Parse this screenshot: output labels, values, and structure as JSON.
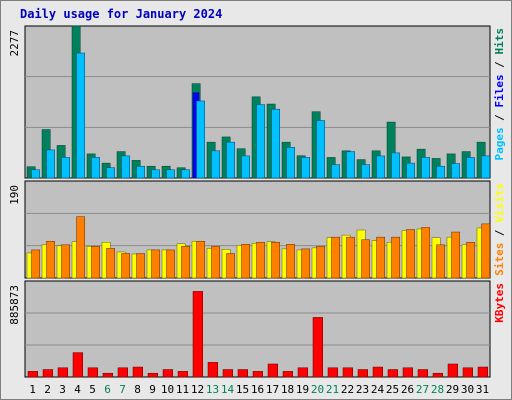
{
  "page_title": "Daily usage for January 2024",
  "colors": {
    "background": "#e8e8e8",
    "plot_background": "#c0c0c0",
    "hits": "#00805c",
    "files": "#00c0ff",
    "pages": "#0000ff",
    "visits": "#ff8000",
    "sites": "#ffff00",
    "kbytes": "#ff0000",
    "weekend_day_label": "#00805c"
  },
  "chart_data": [
    {
      "type": "bar",
      "title": "Daily usage for January 2024",
      "ylabel_parts": [
        "Pages",
        "Files",
        "Hits"
      ],
      "ylabel_separator": " / ",
      "ytick_label": "2277",
      "ylim": [
        0,
        2277
      ],
      "categories": [
        "1",
        "2",
        "3",
        "4",
        "5",
        "6",
        "7",
        "8",
        "9",
        "10",
        "11",
        "12",
        "13",
        "14",
        "15",
        "16",
        "17",
        "18",
        "19",
        "20",
        "21",
        "22",
        "23",
        "24",
        "25",
        "26",
        "27",
        "28",
        "29",
        "30",
        "31"
      ],
      "weekend_days": [
        "6",
        "7",
        "13",
        "14",
        "20",
        "21",
        "27",
        "28"
      ],
      "grid": true,
      "series": [
        {
          "name": "Hits",
          "values": [
            169,
            726,
            488,
            2277,
            361,
            223,
            396,
            264,
            177,
            177,
            154,
            1414,
            537,
            615,
            439,
            1216,
            1108,
            537,
            334,
            993,
            308,
            407,
            276,
            407,
            838,
            316,
            432,
            293,
            361,
            396,
            537
          ]
        },
        {
          "name": "Files",
          "values": [
            123,
            421,
            308,
            1872,
            308,
            154,
            331,
            177,
            123,
            123,
            123,
            1154,
            407,
            537,
            331,
            1100,
            1031,
            461,
            308,
            861,
            200,
            396,
            200,
            331,
            376,
            223,
            308,
            177,
            216,
            308,
            331
          ]
        },
        {
          "name": "Pages",
          "values": [
            0,
            0,
            0,
            0,
            0,
            0,
            0,
            0,
            0,
            0,
            0,
            1277,
            0,
            0,
            0,
            0,
            0,
            0,
            0,
            0,
            0,
            0,
            0,
            0,
            0,
            0,
            0,
            0,
            0,
            0,
            0
          ]
        }
      ]
    },
    {
      "type": "bar",
      "ylabel_parts": [
        "Sites",
        "Visits"
      ],
      "ylabel_separator": " / ",
      "ytick_label": "190",
      "ylim": [
        0,
        190
      ],
      "categories": [
        "1",
        "2",
        "3",
        "4",
        "5",
        "6",
        "7",
        "8",
        "9",
        "10",
        "11",
        "12",
        "13",
        "14",
        "15",
        "16",
        "17",
        "18",
        "19",
        "20",
        "21",
        "22",
        "23",
        "24",
        "25",
        "26",
        "27",
        "28",
        "29",
        "30",
        "31"
      ],
      "grid": true,
      "series": [
        {
          "name": "Visits",
          "values": [
            55,
            72,
            65,
            120,
            62,
            58,
            48,
            48,
            55,
            55,
            62,
            72,
            62,
            48,
            66,
            70,
            70,
            66,
            57,
            62,
            80,
            80,
            75,
            80,
            80,
            95,
            99,
            65,
            90,
            70,
            106
          ]
        },
        {
          "name": "Sites",
          "values": [
            49,
            65,
            63,
            71,
            62,
            70,
            51,
            47,
            55,
            55,
            67,
            72,
            58,
            56,
            64,
            68,
            71,
            57,
            55,
            59,
            79,
            84,
            94,
            73,
            70,
            93,
            96,
            79,
            80,
            65,
            98
          ]
        }
      ]
    },
    {
      "type": "bar",
      "ylabel_parts": [
        "KBytes"
      ],
      "ylabel_separator": "",
      "ytick_label": "885873",
      "ylim": [
        0,
        885873
      ],
      "categories": [
        "1",
        "2",
        "3",
        "4",
        "5",
        "6",
        "7",
        "8",
        "9",
        "10",
        "11",
        "12",
        "13",
        "14",
        "15",
        "16",
        "17",
        "18",
        "19",
        "20",
        "21",
        "22",
        "23",
        "24",
        "25",
        "26",
        "27",
        "28",
        "29",
        "30",
        "31"
      ],
      "grid": true,
      "series": [
        {
          "name": "KBytes",
          "values": [
            52000,
            69000,
            85000,
            225000,
            85000,
            35000,
            85000,
            92000,
            35000,
            69000,
            52000,
            790000,
            135000,
            69000,
            69000,
            52000,
            120000,
            52000,
            85000,
            550000,
            85000,
            85000,
            69000,
            92000,
            69000,
            85000,
            69000,
            35000,
            120000,
            85000,
            92000
          ]
        }
      ]
    }
  ]
}
